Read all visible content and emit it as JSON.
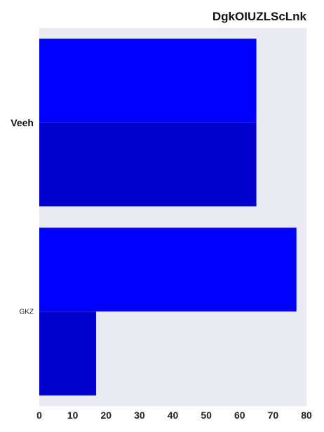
{
  "chart_data": {
    "type": "bar",
    "orientation": "horizontal",
    "title": "DgkOIUZLScLnk",
    "xlabel": "",
    "ylabel": "",
    "categories": [
      "Veeh",
      "GKZ"
    ],
    "series": [
      {
        "values": [
          65,
          77
        ],
        "color": "#0000ff"
      },
      {
        "values": [
          65,
          17
        ],
        "color": "#0000cc"
      }
    ],
    "xlim": [
      0,
      80
    ],
    "xticks": [
      "0",
      "10",
      "20",
      "30",
      "40",
      "50",
      "60",
      "70",
      "80"
    ],
    "background": "#eaeaf2",
    "grid": false,
    "legend": "none"
  }
}
